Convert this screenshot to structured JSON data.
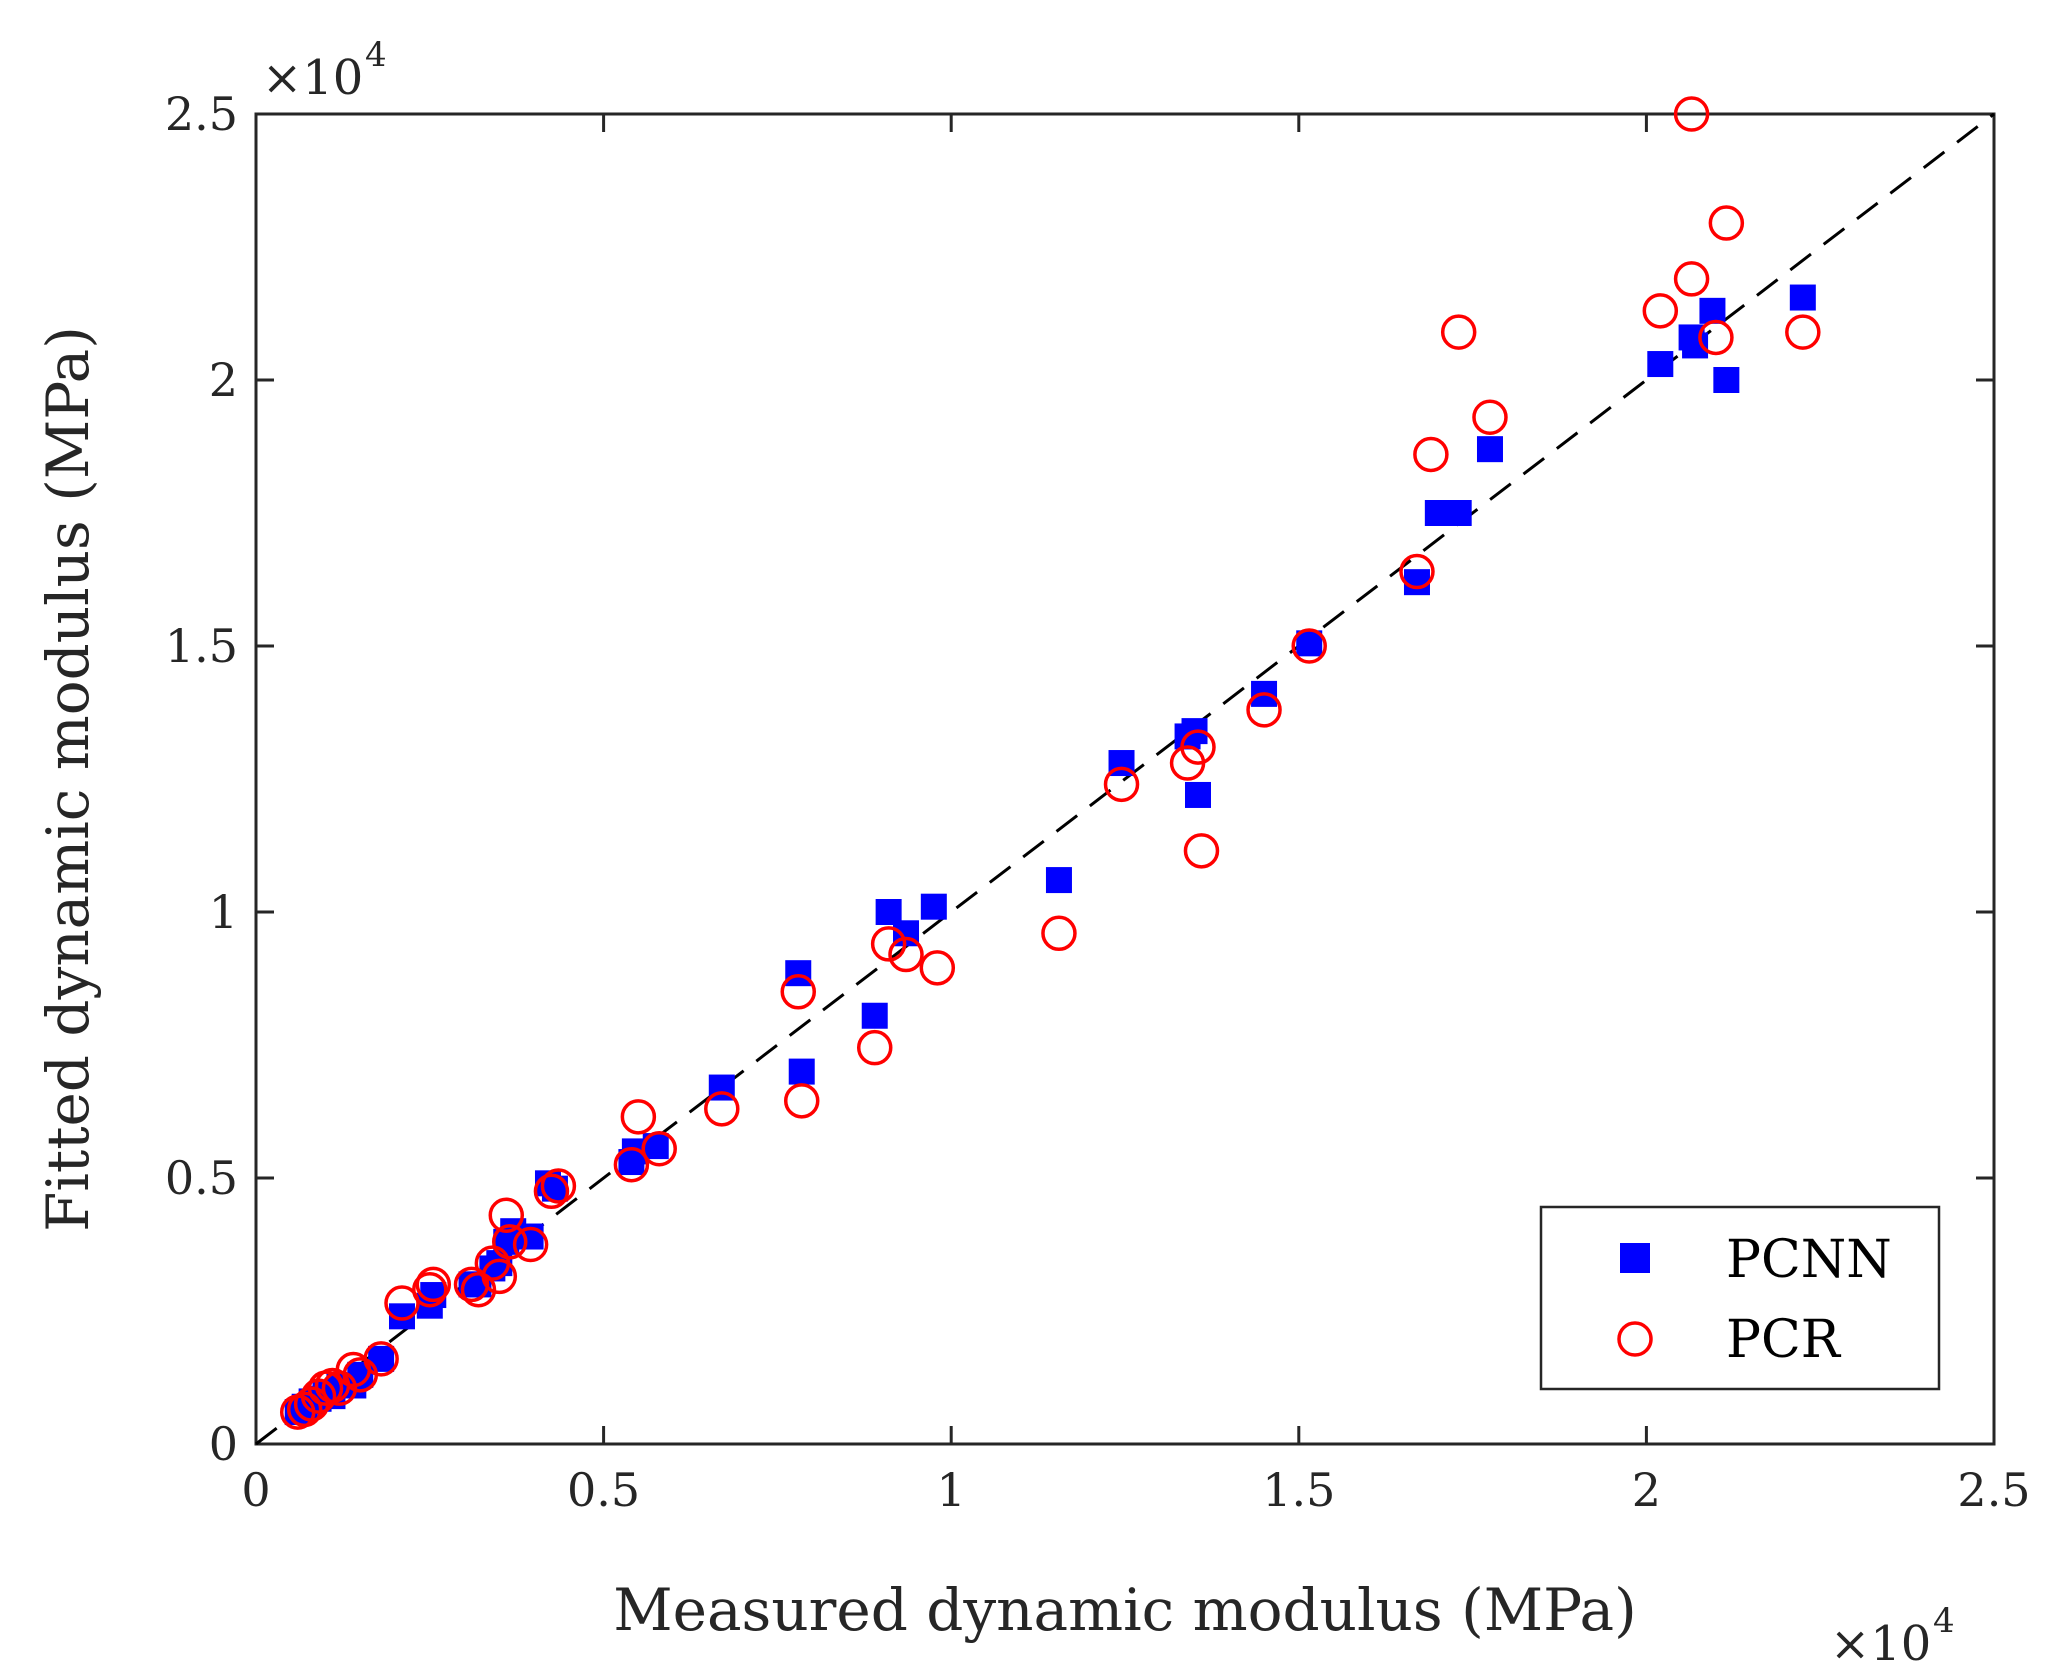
{
  "chart_data": {
    "type": "scatter",
    "xlabel": "Measured dynamic modulus (MPa)",
    "ylabel": "Fitted dynamic modulus (MPa)",
    "xlim": [
      0,
      25000
    ],
    "ylim": [
      0,
      25000
    ],
    "x_exponent_label": "×10",
    "x_exponent_power": "4",
    "y_exponent_label": "×10",
    "y_exponent_power": "4",
    "xticks": [
      0,
      5000,
      10000,
      15000,
      20000,
      25000
    ],
    "xtick_labels": [
      "0",
      "0.5",
      "1",
      "1.5",
      "2",
      "2.5"
    ],
    "yticks": [
      0,
      5000,
      10000,
      15000,
      20000,
      25000
    ],
    "ytick_labels": [
      "0",
      "0.5",
      "1",
      "1.5",
      "2",
      "2.5"
    ],
    "reference_line": {
      "style": "dashed",
      "color": "#000000",
      "from": [
        0,
        0
      ],
      "to": [
        25000,
        25000
      ]
    },
    "legend_position": "bottom-right",
    "grid": false,
    "series": [
      {
        "name": "PCNN",
        "marker": "square",
        "color": "#0000ff",
        "points": [
          [
            600,
            600
          ],
          [
            700,
            700
          ],
          [
            800,
            800
          ],
          [
            900,
            850
          ],
          [
            1000,
            950
          ],
          [
            1100,
            900
          ],
          [
            1200,
            1100
          ],
          [
            1400,
            1100
          ],
          [
            1500,
            1300
          ],
          [
            1800,
            1600
          ],
          [
            2100,
            2400
          ],
          [
            2500,
            2600
          ],
          [
            2550,
            2800
          ],
          [
            3100,
            3000
          ],
          [
            3200,
            3000
          ],
          [
            3400,
            3300
          ],
          [
            3500,
            3400
          ],
          [
            3600,
            3800
          ],
          [
            3700,
            4000
          ],
          [
            3950,
            3900
          ],
          [
            4200,
            4900
          ],
          [
            4300,
            4800
          ],
          [
            5400,
            5300
          ],
          [
            5450,
            5500
          ],
          [
            5750,
            5600
          ],
          [
            6700,
            6700
          ],
          [
            7800,
            8850
          ],
          [
            7850,
            7000
          ],
          [
            8900,
            8050
          ],
          [
            9100,
            10000
          ],
          [
            9350,
            9600
          ],
          [
            9750,
            10100
          ],
          [
            11550,
            10600
          ],
          [
            12450,
            12800
          ],
          [
            13400,
            13300
          ],
          [
            13500,
            13400
          ],
          [
            13550,
            12200
          ],
          [
            14500,
            14100
          ],
          [
            15150,
            15050
          ],
          [
            16700,
            16200
          ],
          [
            17000,
            17500
          ],
          [
            17200,
            17500
          ],
          [
            17300,
            17500
          ],
          [
            17750,
            18700
          ],
          [
            20200,
            20300
          ],
          [
            20650,
            20800
          ],
          [
            20700,
            20650
          ],
          [
            20950,
            21300
          ],
          [
            21150,
            20000
          ],
          [
            22250,
            21550
          ]
        ]
      },
      {
        "name": "PCR",
        "marker": "circle",
        "color": "#ff0000",
        "points": [
          [
            600,
            600
          ],
          [
            700,
            650
          ],
          [
            800,
            750
          ],
          [
            900,
            900
          ],
          [
            1000,
            1050
          ],
          [
            1100,
            1100
          ],
          [
            1200,
            1050
          ],
          [
            1400,
            1400
          ],
          [
            1500,
            1300
          ],
          [
            1800,
            1600
          ],
          [
            2100,
            2650
          ],
          [
            2500,
            2900
          ],
          [
            2550,
            3000
          ],
          [
            3100,
            3000
          ],
          [
            3200,
            2900
          ],
          [
            3400,
            3400
          ],
          [
            3500,
            3150
          ],
          [
            3600,
            4300
          ],
          [
            3650,
            3800
          ],
          [
            3950,
            3750
          ],
          [
            4250,
            4750
          ],
          [
            4350,
            4850
          ],
          [
            5400,
            5250
          ],
          [
            5500,
            6150
          ],
          [
            5800,
            5550
          ],
          [
            6700,
            6300
          ],
          [
            7800,
            8500
          ],
          [
            7850,
            6450
          ],
          [
            8900,
            7450
          ],
          [
            9100,
            9400
          ],
          [
            9350,
            9200
          ],
          [
            9800,
            8950
          ],
          [
            11550,
            9600
          ],
          [
            12450,
            12400
          ],
          [
            13400,
            12800
          ],
          [
            13550,
            13100
          ],
          [
            13600,
            11150
          ],
          [
            14500,
            13800
          ],
          [
            15150,
            15000
          ],
          [
            16700,
            16400
          ],
          [
            16900,
            18600
          ],
          [
            17300,
            20900
          ],
          [
            17750,
            19300
          ],
          [
            20200,
            21300
          ],
          [
            20650,
            21900
          ],
          [
            20650,
            25000
          ],
          [
            21000,
            20800
          ],
          [
            21150,
            22950
          ],
          [
            22250,
            20900
          ]
        ]
      }
    ]
  }
}
